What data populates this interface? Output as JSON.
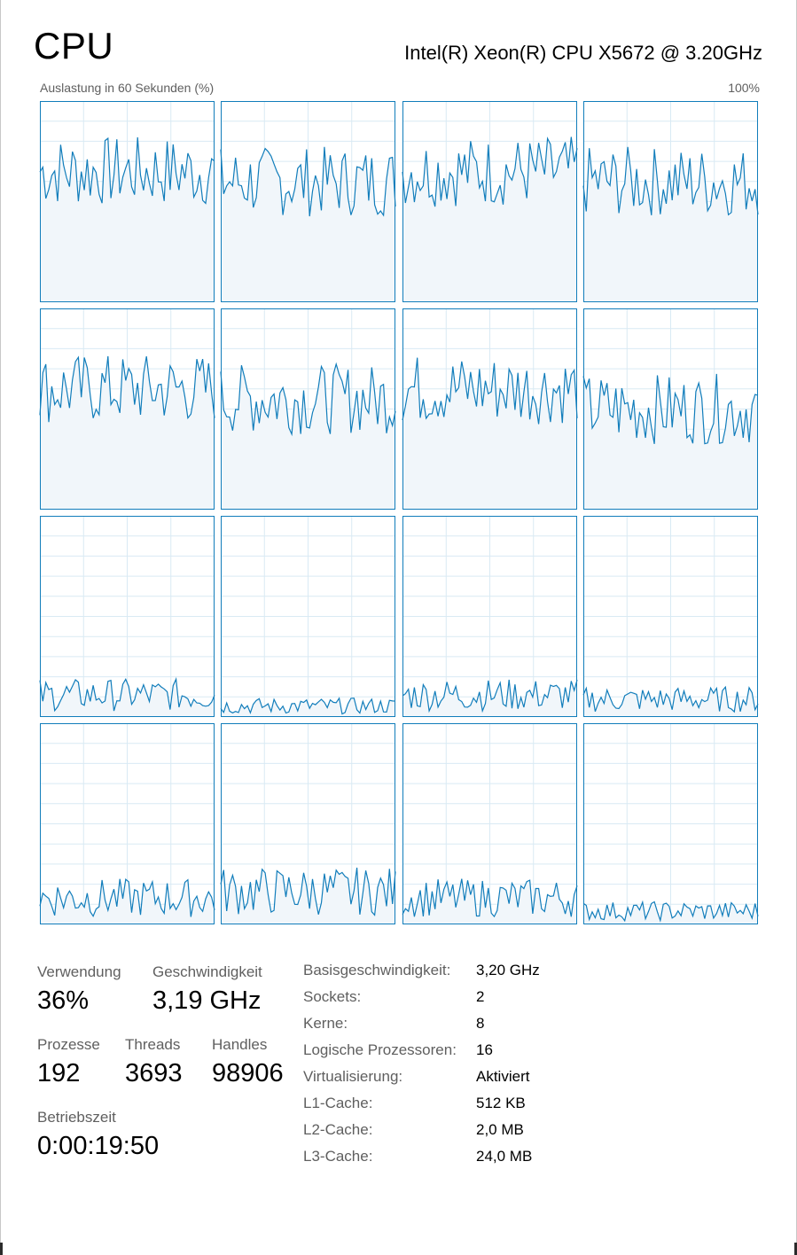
{
  "header": {
    "title": "CPU",
    "cpu_name": "Intel(R) Xeon(R) CPU X5672 @ 3.20GHz",
    "graph_label": "Auslastung in 60 Sekunden (%)",
    "graph_max": "100%"
  },
  "colors": {
    "line": "#117dbb",
    "fill": "#f1f6fa",
    "grid": "#d9eaf4",
    "border": "#117dbb"
  },
  "cores": [
    {
      "name": "core-0",
      "approx_level": 0.65
    },
    {
      "name": "core-1",
      "approx_level": 0.6
    },
    {
      "name": "core-2",
      "approx_level": 0.65
    },
    {
      "name": "core-3",
      "approx_level": 0.6
    },
    {
      "name": "core-4",
      "approx_level": 0.6
    },
    {
      "name": "core-5",
      "approx_level": 0.55
    },
    {
      "name": "core-6",
      "approx_level": 0.6
    },
    {
      "name": "core-7",
      "approx_level": 0.5
    },
    {
      "name": "core-8",
      "approx_level": 0.1
    },
    {
      "name": "core-9",
      "approx_level": 0.05
    },
    {
      "name": "core-10",
      "approx_level": 0.1
    },
    {
      "name": "core-11",
      "approx_level": 0.08
    },
    {
      "name": "core-12",
      "approx_level": 0.12
    },
    {
      "name": "core-13",
      "approx_level": 0.15
    },
    {
      "name": "core-14",
      "approx_level": 0.12
    },
    {
      "name": "core-15",
      "approx_level": 0.06
    }
  ],
  "stats": {
    "usage": {
      "label": "Verwendung",
      "value": "36%"
    },
    "speed": {
      "label": "Geschwindigkeit",
      "value": "3,19 GHz"
    },
    "processes": {
      "label": "Prozesse",
      "value": "192"
    },
    "threads": {
      "label": "Threads",
      "value": "3693"
    },
    "handles": {
      "label": "Handles",
      "value": "98906"
    },
    "uptime": {
      "label": "Betriebszeit",
      "value": "0:00:19:50"
    }
  },
  "properties": [
    {
      "key": "Basisgeschwindigkeit:",
      "value": "3,20 GHz"
    },
    {
      "key": "Sockets:",
      "value": "2"
    },
    {
      "key": "Kerne:",
      "value": "8"
    },
    {
      "key": "Logische Prozessoren:",
      "value": "16"
    },
    {
      "key": "Virtualisierung:",
      "value": "Aktiviert"
    },
    {
      "key": "L1-Cache:",
      "value": "512 KB"
    },
    {
      "key": "L2-Cache:",
      "value": "2,0 MB"
    },
    {
      "key": "L3-Cache:",
      "value": "24,0 MB"
    }
  ]
}
